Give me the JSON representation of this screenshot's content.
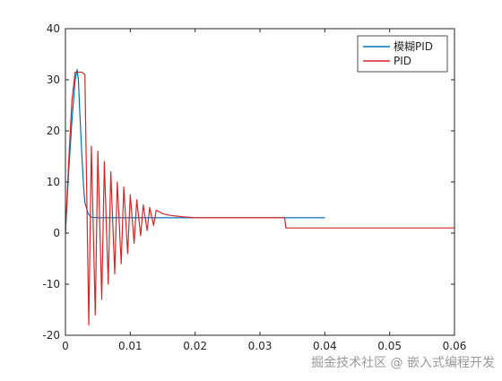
{
  "chart_data": {
    "type": "line",
    "title": "",
    "xlabel": "",
    "ylabel": "",
    "xlim": [
      0,
      0.06
    ],
    "ylim": [
      -20,
      40
    ],
    "xticks": [
      0,
      0.01,
      0.02,
      0.03,
      0.04,
      0.05,
      0.06
    ],
    "xtick_labels": [
      "0",
      "0.01",
      "0.02",
      "0.03",
      "0.04",
      "0.05",
      "0.06"
    ],
    "yticks": [
      -20,
      -10,
      0,
      10,
      20,
      30,
      40
    ],
    "ytick_labels": [
      "-20",
      "-10",
      "0",
      "10",
      "20",
      "30",
      "40"
    ],
    "grid": false,
    "legend_position": "top-right",
    "series": [
      {
        "name": "模糊PID",
        "color": "#0072BD",
        "x": [
          0,
          0.0005,
          0.001,
          0.0015,
          0.0018,
          0.002,
          0.0022,
          0.0025,
          0.0028,
          0.003,
          0.0035,
          0.004,
          0.005,
          0.01,
          0.02,
          0.03,
          0.0338,
          0.034,
          0.04
        ],
        "y": [
          0,
          12,
          22,
          30,
          32,
          30,
          24,
          16,
          9,
          6,
          3.8,
          3.1,
          3,
          3,
          3,
          3,
          3,
          3,
          3
        ]
      },
      {
        "name": "PID",
        "color": "#D62728",
        "x": [
          0,
          0.0005,
          0.001,
          0.0015,
          0.002,
          0.0025,
          0.003,
          0.0036,
          0.004,
          0.0046,
          0.005,
          0.0056,
          0.006,
          0.0066,
          0.007,
          0.0076,
          0.008,
          0.0086,
          0.009,
          0.0096,
          0.01,
          0.0106,
          0.011,
          0.0116,
          0.012,
          0.0126,
          0.013,
          0.0136,
          0.014,
          0.015,
          0.016,
          0.018,
          0.02,
          0.025,
          0.03,
          0.0338,
          0.034,
          0.04,
          0.05,
          0.06
        ],
        "y": [
          0,
          14,
          26,
          31.5,
          31.5,
          31.5,
          31,
          -18,
          17,
          -16,
          16,
          -13,
          14,
          -10,
          12,
          -8,
          10,
          -6,
          9,
          -4,
          7.5,
          -2,
          6.5,
          -0.5,
          5.5,
          0.5,
          5,
          1.5,
          4.5,
          3.8,
          3.5,
          3.2,
          3,
          3,
          3,
          3,
          1,
          1,
          1,
          1
        ]
      }
    ]
  },
  "legend": {
    "entries": [
      "模糊PID",
      "PID"
    ]
  },
  "watermark": {
    "text": "掘金技术社区 @ 嵌入式编程开发"
  }
}
